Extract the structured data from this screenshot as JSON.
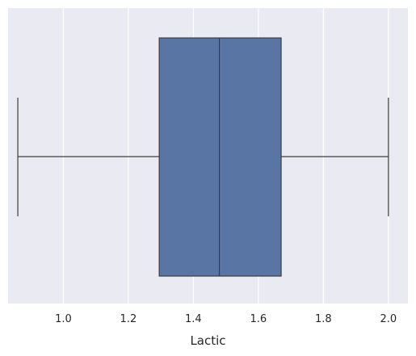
{
  "chart_data": {
    "type": "boxplot",
    "orientation": "horizontal",
    "xlabel": "Lactic",
    "ylabel": "",
    "xlim": [
      0.83,
      2.06
    ],
    "xticks": [
      1.0,
      1.2,
      1.4,
      1.6,
      1.8,
      2.0
    ],
    "xtick_labels": [
      "1.0",
      "1.2",
      "1.4",
      "1.6",
      "1.8",
      "2.0"
    ],
    "grid": true,
    "box": {
      "whisker_low": 0.86,
      "q1": 1.295,
      "median": 1.48,
      "q3": 1.67,
      "whisker_high": 2.0
    },
    "colors": {
      "background": "#eaeaf2",
      "grid": "#ffffff",
      "box_fill": "#5975a4",
      "line": "#3d3d3d"
    }
  }
}
